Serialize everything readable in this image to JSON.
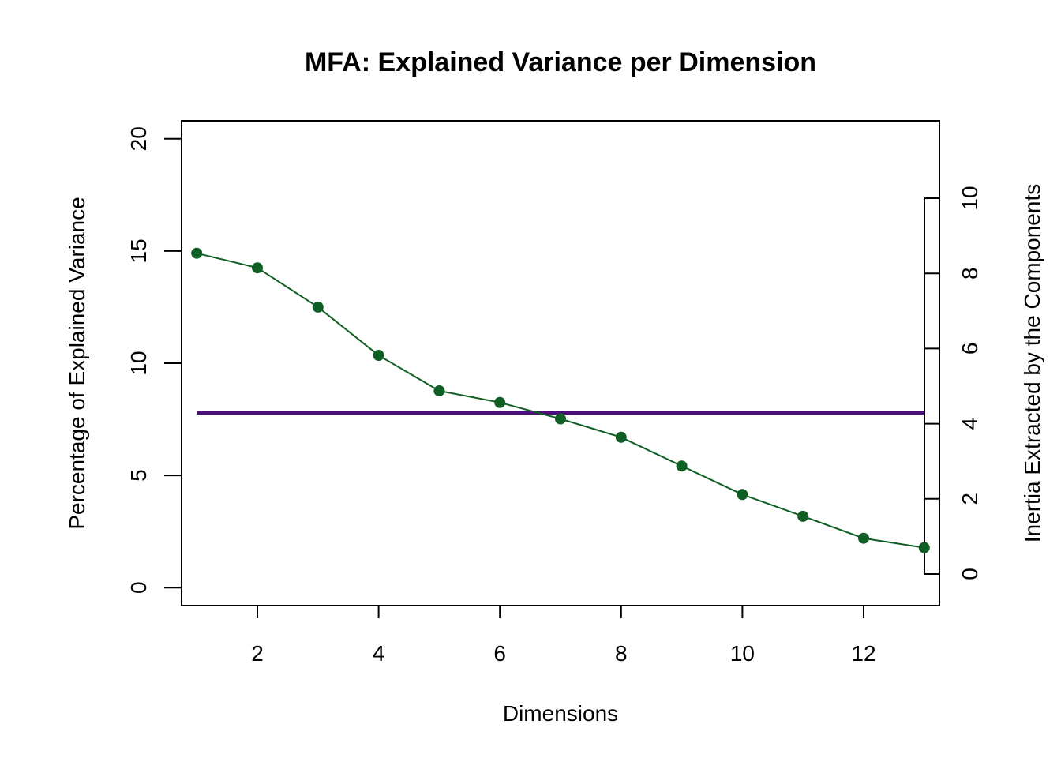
{
  "chart_data": {
    "type": "line",
    "title": "MFA: Explained Variance per Dimension",
    "xlabel": "Dimensions",
    "ylabel": "Percentage of Explained Variance",
    "y2label": "Inertia Extracted by the Components",
    "xlim": [
      0.75,
      13.25
    ],
    "ylim": [
      -0.8,
      20.8
    ],
    "x_ticks": [
      2,
      4,
      6,
      8,
      10,
      12
    ],
    "y_ticks": [
      0,
      5,
      10,
      15,
      20
    ],
    "y2_range": [
      0,
      10
    ],
    "y2_ticks": [
      0,
      2,
      4,
      6,
      8,
      10
    ],
    "y2_tick_labels": [
      "0",
      "2",
      "4",
      "6",
      "8",
      "10"
    ],
    "grid": false,
    "series": [
      {
        "x": [
          1,
          2,
          3,
          4,
          5,
          6,
          7,
          8,
          9,
          10,
          11,
          12,
          13
        ],
        "values": [
          14.9,
          14.25,
          12.5,
          10.35,
          8.77,
          8.25,
          7.52,
          6.7,
          5.42,
          4.15,
          3.18,
          2.2,
          1.78
        ],
        "color": "#0f5e23",
        "marker": "filled-circle"
      }
    ],
    "reference_line": {
      "y": 7.8,
      "color": "#4b0f7a"
    }
  }
}
